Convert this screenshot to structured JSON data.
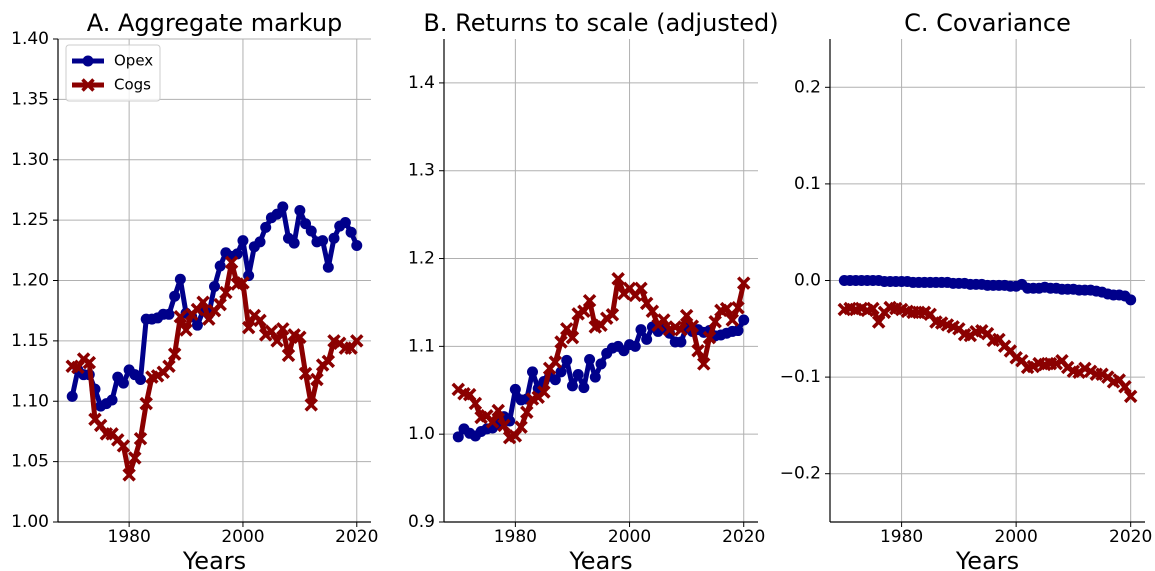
{
  "chart_data": [
    {
      "type": "line",
      "title": "A. Aggregate markup",
      "xlabel": "Years",
      "legend": "upper left",
      "grid": true,
      "x": [
        1970,
        1971,
        1972,
        1973,
        1974,
        1975,
        1976,
        1977,
        1978,
        1979,
        1980,
        1981,
        1982,
        1983,
        1984,
        1985,
        1986,
        1987,
        1988,
        1989,
        1990,
        1991,
        1992,
        1993,
        1994,
        1995,
        1996,
        1997,
        1998,
        1999,
        2000,
        2001,
        2002,
        2003,
        2004,
        2005,
        2006,
        2007,
        2008,
        2009,
        2010,
        2011,
        2012,
        2013,
        2014,
        2015,
        2016,
        2017,
        2018,
        2019,
        2020
      ],
      "xlim": [
        1967.5,
        2022.5
      ],
      "xticks": [
        1980,
        2000,
        2020
      ],
      "ylim": [
        1.0,
        1.4
      ],
      "yticks": [
        {
          "value": 1.0,
          "label": "1.00"
        },
        1.05,
        {
          "value": 1.1,
          "label": "1.10"
        },
        1.15,
        {
          "value": 1.2,
          "label": "1.20"
        },
        1.25,
        {
          "value": 1.3,
          "label": "1.30"
        },
        1.35,
        {
          "value": 1.4,
          "label": "1.40"
        }
      ],
      "series": [
        {
          "name": "Opex",
          "color": "#00008b",
          "marker": "o",
          "values": [
            1.104,
            1.126,
            1.122,
            1.122,
            1.11,
            1.096,
            1.098,
            1.101,
            1.12,
            1.115,
            1.126,
            1.122,
            1.118,
            1.168,
            1.168,
            1.169,
            1.172,
            1.172,
            1.187,
            1.201,
            1.173,
            1.17,
            1.163,
            1.175,
            1.172,
            1.195,
            1.212,
            1.223,
            1.22,
            1.222,
            1.233,
            1.204,
            1.228,
            1.232,
            1.244,
            1.252,
            1.255,
            1.261,
            1.235,
            1.231,
            1.258,
            1.247,
            1.241,
            1.232,
            1.233,
            1.211,
            1.235,
            1.245,
            1.248,
            1.24,
            1.229
          ]
        },
        {
          "name": "Cogs",
          "color": "#8b0000",
          "marker": "x",
          "values": [
            1.129,
            1.128,
            1.135,
            1.132,
            1.085,
            1.08,
            1.073,
            1.073,
            1.068,
            1.063,
            1.039,
            1.053,
            1.069,
            1.098,
            1.12,
            1.121,
            1.124,
            1.129,
            1.139,
            1.17,
            1.159,
            1.172,
            1.176,
            1.182,
            1.168,
            1.175,
            1.18,
            1.19,
            1.215,
            1.197,
            1.198,
            1.161,
            1.171,
            1.167,
            1.155,
            1.158,
            1.15,
            1.16,
            1.138,
            1.155,
            1.153,
            1.123,
            1.097,
            1.118,
            1.13,
            1.133,
            1.15,
            1.148,
            1.144,
            1.144,
            1.15
          ]
        }
      ]
    },
    {
      "type": "line",
      "title": "B. Returns to scale (adjusted)",
      "xlabel": "Years",
      "grid": true,
      "x": [
        1970,
        1971,
        1972,
        1973,
        1974,
        1975,
        1976,
        1977,
        1978,
        1979,
        1980,
        1981,
        1982,
        1983,
        1984,
        1985,
        1986,
        1987,
        1988,
        1989,
        1990,
        1991,
        1992,
        1993,
        1994,
        1995,
        1996,
        1997,
        1998,
        1999,
        2000,
        2001,
        2002,
        2003,
        2004,
        2005,
        2006,
        2007,
        2008,
        2009,
        2010,
        2011,
        2012,
        2013,
        2014,
        2015,
        2016,
        2017,
        2018,
        2019,
        2020
      ],
      "xlim": [
        1967.5,
        2022.5
      ],
      "xticks": [
        1980,
        2000,
        2020
      ],
      "ylim": [
        0.9,
        1.45
      ],
      "yticks": [
        0.9,
        {
          "value": 1.0,
          "label": "1.0"
        },
        1.1,
        1.2,
        1.3,
        1.4
      ],
      "series": [
        {
          "color": "#00008b",
          "marker": "o",
          "values": [
            0.997,
            1.006,
            1.001,
            0.998,
            1.003,
            1.006,
            1.007,
            1.012,
            1.02,
            1.015,
            1.051,
            1.039,
            1.04,
            1.071,
            1.052,
            1.06,
            1.066,
            1.062,
            1.071,
            1.084,
            1.055,
            1.068,
            1.053,
            1.085,
            1.065,
            1.08,
            1.092,
            1.098,
            1.1,
            1.095,
            1.102,
            1.1,
            1.119,
            1.108,
            1.122,
            1.117,
            1.121,
            1.115,
            1.105,
            1.105,
            1.122,
            1.117,
            1.119,
            1.116,
            1.118,
            1.112,
            1.113,
            1.115,
            1.117,
            1.118,
            1.13
          ]
        },
        {
          "color": "#8b0000",
          "marker": "x",
          "values": [
            1.051,
            1.046,
            1.045,
            1.035,
            1.019,
            1.021,
            1.014,
            1.027,
            1.01,
            0.996,
            0.998,
            1.008,
            1.025,
            1.04,
            1.042,
            1.048,
            1.075,
            1.082,
            1.105,
            1.12,
            1.11,
            1.137,
            1.14,
            1.152,
            1.122,
            1.124,
            1.132,
            1.136,
            1.177,
            1.16,
            1.166,
            1.158,
            1.166,
            1.149,
            1.14,
            1.124,
            1.13,
            1.119,
            1.122,
            1.119,
            1.135,
            1.123,
            1.095,
            1.08,
            1.11,
            1.128,
            1.141,
            1.143,
            1.13,
            1.144,
            1.172
          ]
        }
      ]
    },
    {
      "type": "line",
      "title": "C. Covariance",
      "xlabel": "Years",
      "grid": true,
      "x": [
        1970,
        1971,
        1972,
        1973,
        1974,
        1975,
        1976,
        1977,
        1978,
        1979,
        1980,
        1981,
        1982,
        1983,
        1984,
        1985,
        1986,
        1987,
        1988,
        1989,
        1990,
        1991,
        1992,
        1993,
        1994,
        1995,
        1996,
        1997,
        1998,
        1999,
        2000,
        2001,
        2002,
        2003,
        2004,
        2005,
        2006,
        2007,
        2008,
        2009,
        2010,
        2011,
        2012,
        2013,
        2014,
        2015,
        2016,
        2017,
        2018,
        2019,
        2020
      ],
      "xlim": [
        1967.5,
        2022.5
      ],
      "xticks": [
        1980,
        2000,
        2020
      ],
      "ylim": [
        -0.25,
        0.25
      ],
      "yticks": [
        {
          "value": -0.2,
          "label": "−0.2"
        },
        {
          "value": -0.1,
          "label": "−0.1"
        },
        {
          "value": 0.0,
          "label": "0.0"
        },
        0.1,
        0.2
      ],
      "series": [
        {
          "color": "#00008b",
          "marker": "o",
          "values": [
            0.0,
            0.0,
            0.0,
            0.0,
            0.0,
            0.0,
            0.0,
            -0.001,
            -0.001,
            -0.001,
            -0.001,
            -0.001,
            -0.002,
            -0.002,
            -0.002,
            -0.002,
            -0.002,
            -0.002,
            -0.002,
            -0.003,
            -0.003,
            -0.003,
            -0.004,
            -0.004,
            -0.004,
            -0.005,
            -0.005,
            -0.005,
            -0.005,
            -0.006,
            -0.006,
            -0.004,
            -0.008,
            -0.008,
            -0.008,
            -0.007,
            -0.008,
            -0.008,
            -0.009,
            -0.009,
            -0.009,
            -0.01,
            -0.01,
            -0.01,
            -0.011,
            -0.012,
            -0.014,
            -0.015,
            -0.015,
            -0.016,
            -0.02
          ]
        },
        {
          "color": "#8b0000",
          "marker": "x",
          "values": [
            -0.03,
            -0.029,
            -0.03,
            -0.029,
            -0.031,
            -0.029,
            -0.043,
            -0.033,
            -0.028,
            -0.029,
            -0.03,
            -0.032,
            -0.033,
            -0.033,
            -0.033,
            -0.035,
            -0.043,
            -0.044,
            -0.046,
            -0.048,
            -0.05,
            -0.056,
            -0.057,
            -0.053,
            -0.052,
            -0.055,
            -0.062,
            -0.061,
            -0.068,
            -0.073,
            -0.08,
            -0.083,
            -0.09,
            -0.089,
            -0.086,
            -0.087,
            -0.086,
            -0.086,
            -0.083,
            -0.09,
            -0.094,
            -0.095,
            -0.091,
            -0.094,
            -0.097,
            -0.097,
            -0.1,
            -0.105,
            -0.103,
            -0.11,
            -0.12
          ]
        }
      ]
    }
  ]
}
